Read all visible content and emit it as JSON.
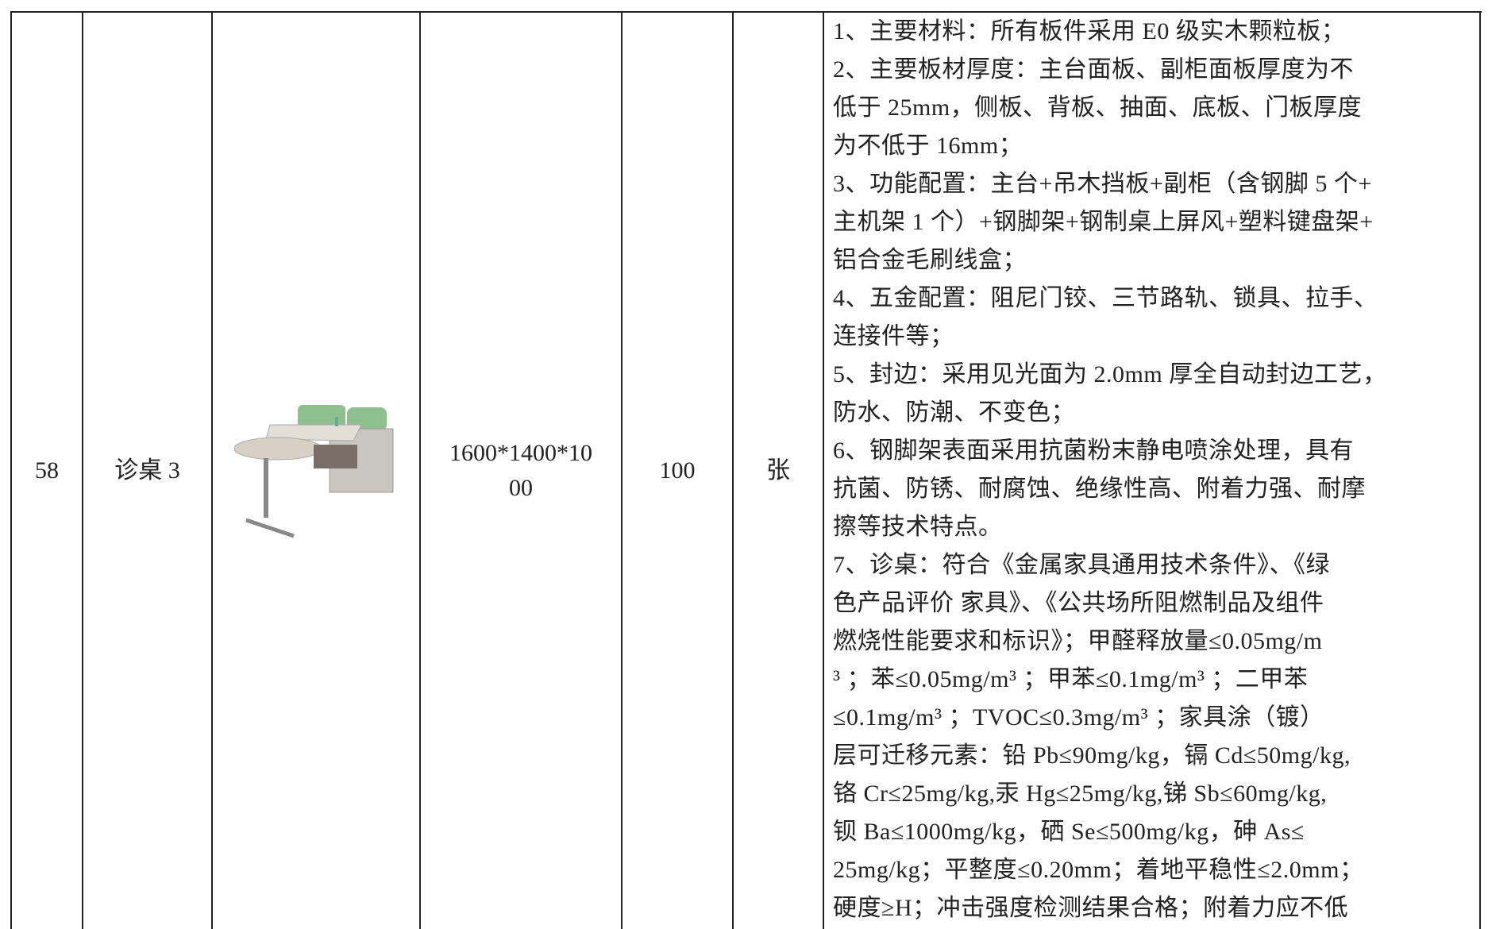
{
  "table": {
    "rows": [
      {
        "no": "58",
        "name": "诊桌 3",
        "size": [
          "1600*1400*10",
          "00"
        ],
        "quantity": "100",
        "unit": "张",
        "description": [
          "1、主要材料：所有板件采用 E0 级实木颗粒板；",
          "2、主要板材厚度：主台面板、副柜面板厚度为不",
          "低于 25mm，侧板、背板、抽面、底板、门板厚度",
          "为不低于 16mm；",
          "3、功能配置：主台+吊木挡板+副柜（含钢脚 5 个+",
          "主机架 1 个）+钢脚架+钢制桌上屏风+塑料键盘架+",
          "铝合金毛刷线盒；",
          "4、五金配置：阻尼门铰、三节路轨、锁具、拉手、",
          "连接件等；",
          "5、封边：采用见光面为 2.0mm 厚全自动封边工艺，",
          "防水、防潮、不变色；",
          "6、钢脚架表面采用抗菌粉末静电喷涂处理，具有",
          "抗菌、防锈、耐腐蚀、绝缘性高、附着力强、耐摩",
          "擦等技术特点。",
          "7、诊桌：符合《金属家具通用技术条件》、《绿",
          "色产品评价 家具》、《公共场所阻燃制品及组件",
          "燃烧性能要求和标识》；甲醛释放量≤0.05mg/m",
          "³ ；苯≤0.05mg/m³ ；甲苯≤0.1mg/m³ ；二甲苯",
          "≤0.1mg/m³ ；TVOC≤0.3mg/m³ ；家具涂（镀）",
          "层可迁移元素：铅 Pb≤90mg/kg，镉 Cd≤50mg/kg,",
          "铬 Cr≤25mg/kg,汞 Hg≤25mg/kg,锑 Sb≤60mg/kg,",
          "钡 Ba≤1000mg/kg，硒 Se≤500mg/kg，砷 As≤",
          "25mg/kg；平整度≤0.20mm；着地平稳性≤2.0mm；",
          "硬度≥H；冲击强度检测结果合格；附着力应不低"
        ]
      }
    ]
  }
}
